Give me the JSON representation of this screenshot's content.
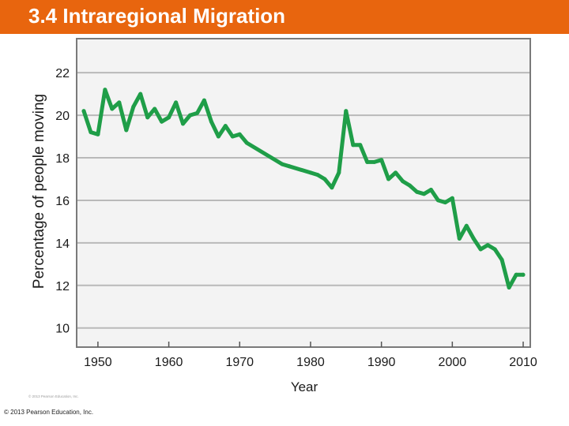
{
  "slide": {
    "title": "3.4 Intraregional Migration",
    "small_copyright": "© 2013 Pearson Education, Inc.",
    "footer_copyright": "© 2013 Pearson Education, Inc."
  },
  "colors": {
    "title_bar": "#e8650e",
    "title_text": "#ffffff",
    "line": "#1f9e48",
    "plot_background": "#f3f3f3",
    "gridline": "#b9b9b9",
    "axis_text": "#1a1a1a"
  },
  "chart_data": {
    "type": "line",
    "title": "",
    "xlabel": "Year",
    "ylabel": "Percentage of people moving",
    "xlim": [
      1947,
      2011
    ],
    "ylim": [
      9.1,
      23.6
    ],
    "x_ticks": [
      1950,
      1960,
      1970,
      1980,
      1990,
      2000,
      2010
    ],
    "y_ticks": [
      10,
      12,
      14,
      16,
      18,
      20,
      22
    ],
    "grid": "horizontal",
    "series": [
      {
        "x": [
          1948,
          1949,
          1950,
          1951,
          1952,
          1953,
          1954,
          1955,
          1956,
          1957,
          1958,
          1959,
          1960,
          1961,
          1962,
          1963,
          1964,
          1965,
          1966,
          1967,
          1968,
          1969,
          1970,
          1971,
          1976,
          1977,
          1980,
          1981,
          1982,
          1983,
          1984,
          1985,
          1986,
          1987,
          1988,
          1989,
          1990,
          1991,
          1992,
          1993,
          1994,
          1995,
          1996,
          1997,
          1998,
          1999,
          2000,
          2001,
          2002,
          2003,
          2004,
          2005,
          2006,
          2007,
          2008,
          2009,
          2010
        ],
        "y": [
          20.2,
          19.2,
          19.1,
          21.2,
          20.3,
          20.6,
          19.3,
          20.4,
          21.0,
          19.9,
          20.3,
          19.7,
          19.9,
          20.6,
          19.6,
          20.0,
          20.1,
          20.7,
          19.7,
          19.0,
          19.5,
          19.0,
          19.1,
          18.7,
          17.7,
          17.6,
          17.3,
          17.2,
          17.0,
          16.6,
          17.3,
          20.2,
          18.6,
          18.6,
          17.8,
          17.8,
          17.9,
          17.0,
          17.3,
          16.9,
          16.7,
          16.4,
          16.3,
          16.5,
          16.0,
          15.9,
          16.1,
          14.2,
          14.8,
          14.2,
          13.7,
          13.9,
          13.7,
          13.2,
          11.9,
          12.5,
          12.5
        ]
      }
    ]
  }
}
